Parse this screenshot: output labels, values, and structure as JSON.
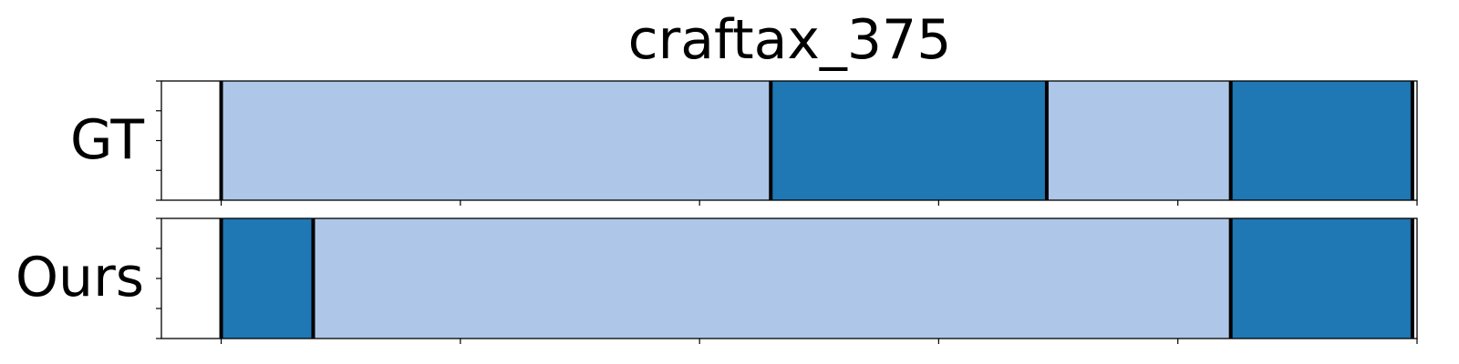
{
  "chart_data": {
    "type": "segmentation-timeline",
    "title": "craftax_375",
    "xlim": [
      0,
      1
    ],
    "x_ticks": [
      0.0476,
      0.2381,
      0.4286,
      0.619,
      0.8095,
      1.0
    ],
    "y_ticks": [
      0,
      0.25,
      0.5,
      0.75,
      1.0
    ],
    "grid": false,
    "colors": {
      "light": "#aec7e8",
      "dark": "#1f77b4",
      "boundary": "#000000"
    },
    "rows": [
      {
        "label": "GT",
        "segments": [
          {
            "start": 0.0476,
            "end": 0.4853,
            "color": "light"
          },
          {
            "start": 0.4853,
            "end": 0.7051,
            "color": "dark"
          },
          {
            "start": 0.7051,
            "end": 0.8516,
            "color": "light"
          },
          {
            "start": 0.8516,
            "end": 0.9963,
            "color": "dark"
          }
        ]
      },
      {
        "label": "Ours",
        "segments": [
          {
            "start": 0.0476,
            "end": 0.1209,
            "color": "dark"
          },
          {
            "start": 0.1209,
            "end": 0.8516,
            "color": "light"
          },
          {
            "start": 0.8516,
            "end": 0.9963,
            "color": "dark"
          }
        ]
      }
    ]
  }
}
